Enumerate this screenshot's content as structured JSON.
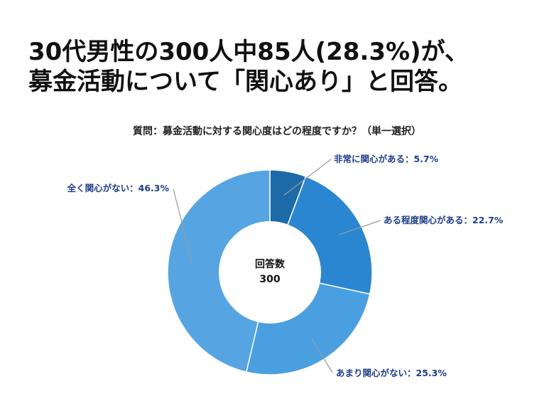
{
  "headline": {
    "line1": "30代男性の300人中85人(28.3%)が、",
    "line2": "募金活動について「関心あり」と回答。"
  },
  "chart_data": {
    "type": "pie",
    "title": "質問：募金活動に対する関心度はどの程度ですか？（単一選択）",
    "center_label": "回答数",
    "center_value": "300",
    "categories": [
      "非常に関心がある",
      "ある程度関心がある",
      "あまり関心がない",
      "全く関心がない"
    ],
    "values": [
      5.7,
      22.7,
      25.3,
      46.3
    ],
    "labels": [
      "非常に関心がある：5.7%",
      "ある程度関心がある：22.7%",
      "あまり関心がない：25.3%",
      "全く関心がない：46.3%"
    ],
    "colors": [
      "#1c6aa7",
      "#2a86d1",
      "#4a9fe0",
      "#56a5e2"
    ],
    "label_color": "#1f3d8a",
    "leader_color": "#9a9a9a"
  }
}
